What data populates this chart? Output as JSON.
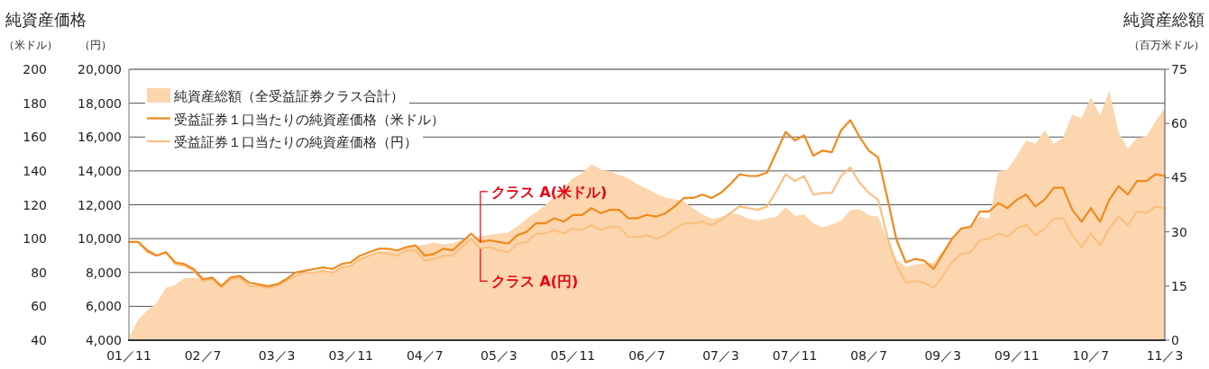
{
  "chart_data": {
    "type": "line",
    "x": [
      "2001-11",
      "2001-12",
      "2002-01",
      "2002-02",
      "2002-03",
      "2002-04",
      "2002-05",
      "2002-06",
      "2002-07",
      "2002-08",
      "2002-09",
      "2002-10",
      "2002-11",
      "2002-12",
      "2003-01",
      "2003-02",
      "2003-03",
      "2003-04",
      "2003-05",
      "2003-06",
      "2003-07",
      "2003-08",
      "2003-09",
      "2003-10",
      "2003-11",
      "2003-12",
      "2004-01",
      "2004-02",
      "2004-03",
      "2004-04",
      "2004-05",
      "2004-06",
      "2004-07",
      "2004-08",
      "2004-09",
      "2004-10",
      "2004-11",
      "2004-12",
      "2005-01",
      "2005-02",
      "2005-03",
      "2005-04",
      "2005-05",
      "2005-06",
      "2005-07",
      "2005-08",
      "2005-09",
      "2005-10",
      "2005-11",
      "2005-12",
      "2006-01",
      "2006-02",
      "2006-03",
      "2006-04",
      "2006-05",
      "2006-06",
      "2006-07",
      "2006-08",
      "2006-09",
      "2006-10",
      "2006-11",
      "2006-12",
      "2007-01",
      "2007-02",
      "2007-03",
      "2007-04",
      "2007-05",
      "2007-06",
      "2007-07",
      "2007-08",
      "2007-09",
      "2007-10",
      "2007-11",
      "2007-12",
      "2008-01",
      "2008-02",
      "2008-03",
      "2008-04",
      "2008-05",
      "2008-06",
      "2008-07",
      "2008-08",
      "2008-09",
      "2008-10",
      "2008-11",
      "2008-12",
      "2009-01",
      "2009-02",
      "2009-03",
      "2009-04",
      "2009-05",
      "2009-06",
      "2009-07",
      "2009-08",
      "2009-09",
      "2009-10",
      "2009-11",
      "2009-12",
      "2010-01",
      "2010-02",
      "2010-03",
      "2010-04",
      "2010-05",
      "2010-06",
      "2010-07",
      "2010-08",
      "2010-09",
      "2010-10",
      "2010-11",
      "2010-12",
      "2011-01",
      "2011-02",
      "2011-03"
    ],
    "series": [
      {
        "name": "純資産総額（全受益証券クラス合計）",
        "type": "area",
        "axis": "y3",
        "color": "#fbd6ae",
        "values": [
          0.7,
          5.7,
          8.2,
          10.3,
          14.5,
          15.3,
          17.1,
          17.3,
          16.8,
          17.3,
          14.9,
          17.4,
          17.6,
          15.3,
          14.9,
          14.5,
          15,
          16.5,
          17.6,
          18.6,
          19,
          19.4,
          19,
          20.7,
          20.9,
          22.8,
          23.6,
          24.4,
          24.8,
          24.4,
          25.7,
          26.1,
          26.5,
          27.1,
          26.5,
          26.9,
          27.7,
          28.4,
          28.7,
          29.2,
          29.5,
          29.8,
          31.5,
          33.6,
          35.4,
          37.3,
          39.8,
          42.3,
          44.8,
          46.2,
          48.7,
          47.3,
          46.8,
          45.8,
          44.8,
          43.1,
          41.9,
          40.6,
          39.4,
          39,
          38.5,
          36.5,
          34.8,
          33.7,
          34,
          35.2,
          34.8,
          33.6,
          33.1,
          33.7,
          34.2,
          36.9,
          34.4,
          34.8,
          32.3,
          31.2,
          32.1,
          33.1,
          36,
          36.3,
          34.6,
          34.2,
          27.7,
          22.3,
          20.3,
          20.9,
          21.3,
          21.5,
          24.8,
          28.2,
          31.2,
          31.9,
          34.2,
          33.7,
          46.8,
          47.3,
          51,
          55.3,
          54.3,
          58.1,
          54.3,
          56.1,
          62.5,
          61.4,
          67.2,
          62.2,
          69.1,
          57.5,
          53.1,
          56,
          56.4,
          60.6,
          64.3
        ]
      },
      {
        "name": "受益証券１口当たりの純資産価格（米ドル）",
        "color": "#ef8a1e",
        "values": [
          98,
          98,
          93,
          90,
          92,
          86,
          85,
          82,
          76,
          77,
          72,
          77,
          78,
          74,
          73,
          72,
          73,
          76,
          80,
          81,
          82,
          83,
          82,
          85,
          86,
          90,
          92,
          94,
          94,
          93,
          95,
          96,
          90,
          91,
          94,
          93,
          98,
          103,
          98,
          99,
          98,
          97,
          102,
          104,
          109,
          109,
          112,
          110,
          114,
          114,
          118,
          115,
          117,
          117,
          112,
          112,
          114,
          113,
          115,
          119,
          124,
          124,
          126,
          124,
          127,
          132,
          138,
          137,
          137,
          139,
          151,
          163,
          158,
          161,
          149,
          152,
          151,
          164,
          170,
          160,
          152,
          148,
          124,
          99,
          86,
          88,
          87,
          82,
          91,
          100,
          106,
          107,
          116,
          116,
          121,
          118,
          123,
          126,
          119,
          123,
          130,
          130,
          117,
          110,
          118,
          110,
          123,
          131,
          126,
          134,
          134,
          138,
          137
        ]
      },
      {
        "name": "受益証券１口当たりの純資産価格（円）",
        "axis": "y2",
        "color": "#fbbf80",
        "values": [
          9800,
          9800,
          9200,
          9000,
          9200,
          8500,
          8400,
          8100,
          7500,
          7600,
          7100,
          7600,
          7700,
          7200,
          7200,
          7100,
          7200,
          7500,
          7800,
          8000,
          8000,
          8100,
          8000,
          8300,
          8400,
          8800,
          9000,
          9200,
          9100,
          9000,
          9300,
          9300,
          8700,
          8800,
          9000,
          9000,
          9500,
          10000,
          9400,
          9500,
          9300,
          9200,
          9700,
          9800,
          10300,
          10300,
          10500,
          10300,
          10600,
          10500,
          10800,
          10500,
          10700,
          10700,
          10100,
          10100,
          10200,
          10000,
          10200,
          10600,
          10900,
          10900,
          11000,
          10800,
          11100,
          11500,
          11900,
          11800,
          11700,
          11900,
          12800,
          13800,
          13400,
          13700,
          12600,
          12700,
          12700,
          13700,
          14200,
          13300,
          12700,
          12300,
          10100,
          8400,
          7400,
          7500,
          7400,
          7100,
          7800,
          8600,
          9100,
          9200,
          9900,
          10000,
          10300,
          10100,
          10600,
          10800,
          10200,
          10600,
          11200,
          11200,
          10200,
          9500,
          10300,
          9600,
          10600,
          11300,
          10800,
          11600,
          11500,
          11900,
          11800
        ]
      }
    ],
    "xlim": [
      "2001-11",
      "2011-03"
    ],
    "xticks": [
      {
        "value": "2001-11",
        "label": "01／11"
      },
      {
        "value": "2002-07",
        "label": "02／7"
      },
      {
        "value": "2003-03",
        "label": "03／3"
      },
      {
        "value": "2003-11",
        "label": "03／11"
      },
      {
        "value": "2004-07",
        "label": "04／7"
      },
      {
        "value": "2005-03",
        "label": "05／3"
      },
      {
        "value": "2005-11",
        "label": "05／11"
      },
      {
        "value": "2006-07",
        "label": "06／7"
      },
      {
        "value": "2007-03",
        "label": "07／3"
      },
      {
        "value": "2007-11",
        "label": "07／11"
      },
      {
        "value": "2008-07",
        "label": "08／7"
      },
      {
        "value": "2009-03",
        "label": "09／3"
      },
      {
        "value": "2009-11",
        "label": "09／11"
      },
      {
        "value": "2010-07",
        "label": "10／7"
      },
      {
        "value": "2011-03",
        "label": "11／3"
      }
    ],
    "ylim": [
      40,
      200
    ],
    "yticks": [
      40,
      60,
      80,
      100,
      120,
      140,
      160,
      180,
      200
    ],
    "y2lim": [
      4000,
      20000
    ],
    "y2ticks": [
      {
        "value": 4000,
        "label": "4,000"
      },
      {
        "value": 6000,
        "label": "6,000"
      },
      {
        "value": 8000,
        "label": "8,000"
      },
      {
        "value": 10000,
        "label": "10,000"
      },
      {
        "value": 12000,
        "label": "12,000"
      },
      {
        "value": 14000,
        "label": "14,000"
      },
      {
        "value": 16000,
        "label": "16,000"
      },
      {
        "value": 18000,
        "label": "18,000"
      },
      {
        "value": 20000,
        "label": "20,000"
      }
    ],
    "y3lim": [
      0,
      75
    ],
    "y3ticks": [
      0,
      15,
      30,
      45,
      60,
      75
    ],
    "ylabel": "（米ドル）",
    "y2label": "（円）",
    "y3label": "（百万米ドル）",
    "annotations": [
      "純資産価格",
      "純資産総額",
      {
        "text": "クラス A(米ドル)",
        "x": "2005-01",
        "y": 98
      },
      {
        "text": "クラス A(円)",
        "x": "2005-01",
        "y": 94
      }
    ],
    "grid": "y",
    "legend": "top left",
    "line_style": "solid"
  }
}
